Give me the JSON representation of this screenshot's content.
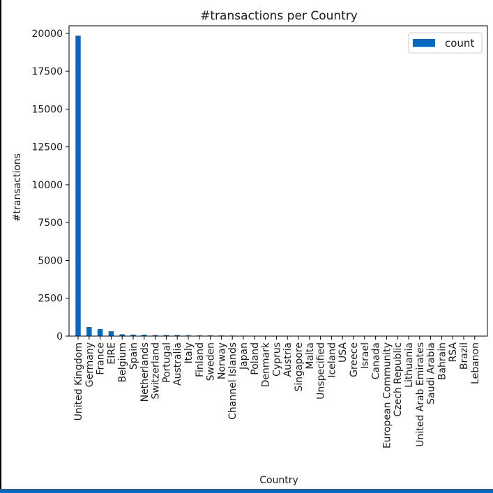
{
  "theme": {
    "bar_color": "#0868c0",
    "bottom_bar_color": "#0868c0",
    "frame_color": "#000000"
  },
  "chart_data": {
    "type": "bar",
    "title": "#transactions per Country",
    "xlabel": "Country",
    "ylabel": "#transactions",
    "ylim": [
      0,
      20500
    ],
    "yticks": [
      0,
      2500,
      5000,
      7500,
      10000,
      12500,
      15000,
      17500,
      20000
    ],
    "grid": false,
    "legend": {
      "position": "top-right",
      "entries": [
        "count"
      ]
    },
    "categories": [
      "United Kingdom",
      "Germany",
      "France",
      "EIRE",
      "Belgium",
      "Spain",
      "Netherlands",
      "Switzerland",
      "Portugal",
      "Australia",
      "Italy",
      "Finland",
      "Sweden",
      "Norway",
      "Channel Islands",
      "Japan",
      "Poland",
      "Denmark",
      "Cyprus",
      "Austria",
      "Singapore",
      "Malta",
      "Unspecified",
      "Iceland",
      "USA",
      "Greece",
      "Israel",
      "Canada",
      "European Community",
      "Czech Republic",
      "Lithuania",
      "United Arab Emirates",
      "Saudi Arabia",
      "Bahrain",
      "RSA",
      "Brazil",
      "Lebanon"
    ],
    "series": [
      {
        "name": "count",
        "values": [
          19850,
          600,
          460,
          320,
          120,
          100,
          95,
          70,
          70,
          70,
          55,
          48,
          46,
          40,
          35,
          28,
          24,
          22,
          20,
          19,
          10,
          10,
          9,
          7,
          7,
          6,
          6,
          6,
          5,
          5,
          4,
          3,
          2,
          2,
          1,
          1,
          1
        ]
      }
    ]
  }
}
